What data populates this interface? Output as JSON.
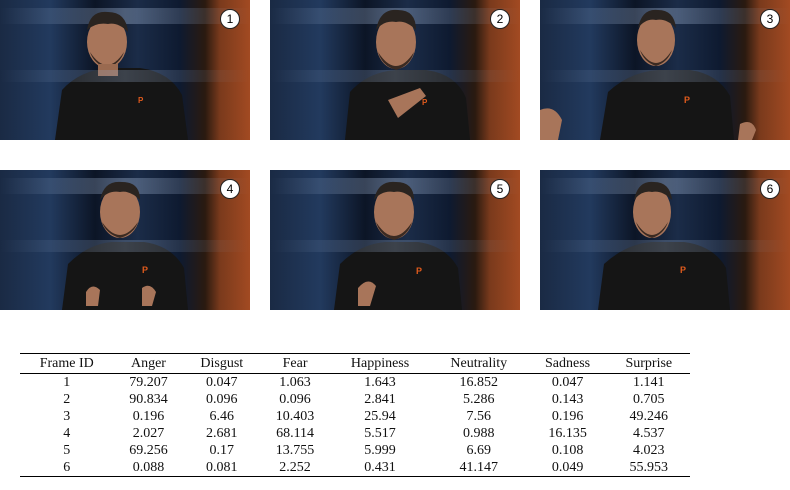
{
  "frames": [
    {
      "id": "1"
    },
    {
      "id": "2"
    },
    {
      "id": "3"
    },
    {
      "id": "4"
    },
    {
      "id": "5"
    },
    {
      "id": "6"
    }
  ],
  "table": {
    "columns": [
      "Frame ID",
      "Anger",
      "Disgust",
      "Fear",
      "Happiness",
      "Neutrality",
      "Sadness",
      "Surprise"
    ],
    "rows": [
      [
        "1",
        "79.207",
        "0.047",
        "1.063",
        "1.643",
        "16.852",
        "0.047",
        "1.141"
      ],
      [
        "2",
        "90.834",
        "0.096",
        "0.096",
        "2.841",
        "5.286",
        "0.143",
        "0.705"
      ],
      [
        "3",
        "0.196",
        "6.46",
        "10.403",
        "25.94",
        "7.56",
        "0.196",
        "49.246"
      ],
      [
        "4",
        "2.027",
        "2.681",
        "68.114",
        "5.517",
        "0.988",
        "16.135",
        "4.537"
      ],
      [
        "5",
        "69.256",
        "0.17",
        "13.755",
        "5.999",
        "6.69",
        "0.108",
        "4.023"
      ],
      [
        "6",
        "0.088",
        "0.081",
        "2.252",
        "0.431",
        "41.147",
        "0.049",
        "55.953"
      ]
    ]
  }
}
